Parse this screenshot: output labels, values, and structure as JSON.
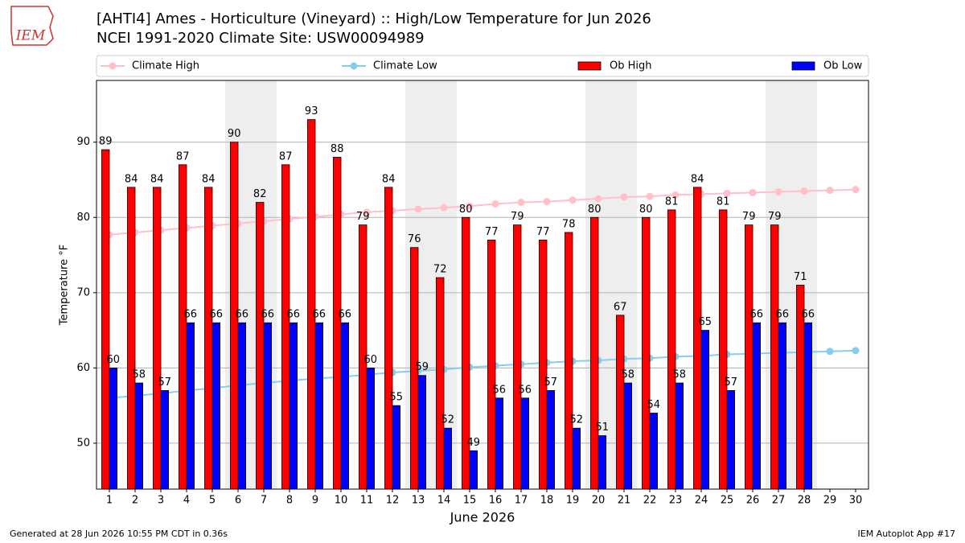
{
  "logo_text": "IEM",
  "chart_data": {
    "type": "bar",
    "title": "[AHTI4] Ames - Horticulture (Vineyard) :: High/Low Temperature for Jun 2026",
    "subtitle": "NCEI 1991-2020 Climate Site: USW00094989",
    "x_label": "June 2026",
    "y_label": "Temperature °F",
    "footer_left": "Generated at 28 Jun 2026 10:55 PM CDT in 0.36s",
    "footer_right": "IEM Autoplot App #17",
    "x": [
      1,
      2,
      3,
      4,
      5,
      6,
      7,
      8,
      9,
      10,
      11,
      12,
      13,
      14,
      15,
      16,
      17,
      18,
      19,
      20,
      21,
      22,
      23,
      24,
      25,
      26,
      27,
      28,
      29,
      30
    ],
    "xlim": [
      0.5,
      30.5
    ],
    "ylim": [
      43.9,
      98.2
    ],
    "yticks": [
      50,
      60,
      70,
      80,
      90
    ],
    "grid": true,
    "series": [
      {
        "name": "Climate High",
        "type": "line",
        "color": "#ffc0cb",
        "values": [
          77.7,
          78.0,
          78.3,
          78.6,
          78.9,
          79.2,
          79.5,
          79.8,
          80.1,
          80.4,
          80.7,
          80.9,
          81.1,
          81.3,
          81.5,
          81.8,
          82.0,
          82.1,
          82.3,
          82.5,
          82.7,
          82.8,
          83.0,
          83.1,
          83.2,
          83.3,
          83.4,
          83.5,
          83.6,
          83.7
        ]
      },
      {
        "name": "Climate Low",
        "type": "line",
        "color": "#87ceeb",
        "values": [
          56.0,
          56.3,
          56.6,
          57.0,
          57.3,
          57.7,
          58.0,
          58.3,
          58.6,
          58.8,
          59.1,
          59.4,
          59.6,
          59.8,
          60.1,
          60.3,
          60.5,
          60.7,
          60.9,
          61.0,
          61.2,
          61.3,
          61.5,
          61.6,
          61.8,
          61.9,
          62.0,
          62.1,
          62.2,
          62.3
        ]
      },
      {
        "name": "Ob High",
        "type": "bar",
        "color": "#ff0000",
        "values": [
          89,
          84,
          84,
          87,
          84,
          90,
          82,
          87,
          93,
          88,
          79,
          84,
          76,
          72,
          80,
          77,
          79,
          77,
          78,
          80,
          67,
          80,
          81,
          84,
          81,
          79,
          79,
          71,
          null,
          null
        ]
      },
      {
        "name": "Ob Low",
        "type": "bar",
        "color": "#0000ff",
        "values": [
          60,
          58,
          57,
          66,
          66,
          66,
          66,
          66,
          66,
          66,
          60,
          55,
          59,
          52,
          49,
          56,
          56,
          57,
          52,
          51,
          58,
          54,
          58,
          65,
          57,
          66,
          66,
          66,
          null,
          null
        ]
      }
    ]
  }
}
